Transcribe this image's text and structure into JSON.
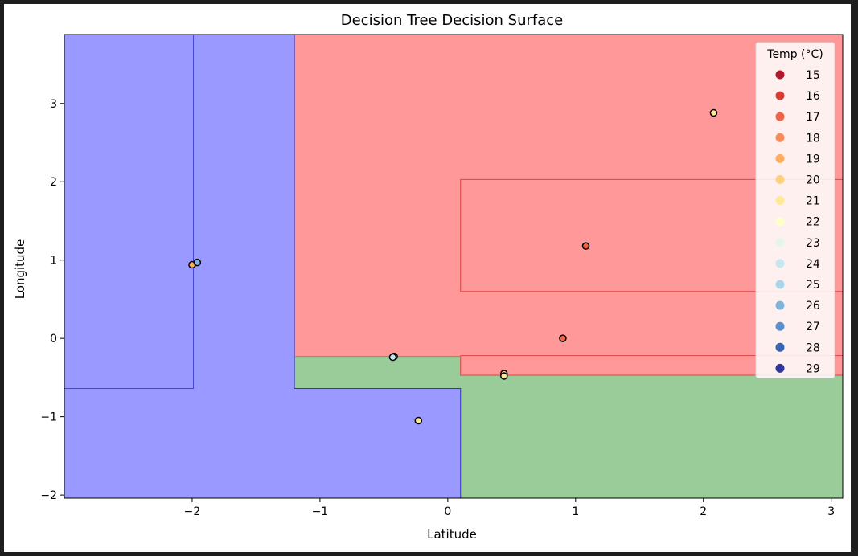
{
  "chart_data": {
    "type": "scatter",
    "title": "Decision Tree Decision Surface",
    "xlabel": "Latitude",
    "ylabel": "Longitude",
    "xlim": [
      -3.0,
      3.09
    ],
    "ylim": [
      -2.04,
      3.88
    ],
    "xticks": [
      -2,
      -1,
      0,
      1,
      2,
      3
    ],
    "yticks": [
      -2,
      -1,
      0,
      1,
      2,
      3
    ],
    "grid": false,
    "regions": [
      {
        "class": "blue",
        "color": "#9999ff",
        "x": [
          -3.0,
          -1.2
        ],
        "y": [
          -2.04,
          3.88
        ]
      },
      {
        "class": "blue",
        "color": "#9999ff",
        "x": [
          -1.2,
          0.1
        ],
        "y": [
          -2.04,
          -0.64
        ]
      },
      {
        "class": "red",
        "color": "#ff9999",
        "x": [
          -1.2,
          3.09
        ],
        "y": [
          -0.23,
          3.88
        ]
      },
      {
        "class": "red",
        "color": "#ff9999",
        "x": [
          0.1,
          3.09
        ],
        "y": [
          -0.47,
          -0.23
        ]
      },
      {
        "class": "green",
        "color": "#99cc99",
        "x": [
          -1.2,
          0.1
        ],
        "y": [
          -0.64,
          -0.23
        ]
      },
      {
        "class": "green",
        "color": "#99cc99",
        "x": [
          0.1,
          3.09
        ],
        "y": [
          -2.04,
          -0.47
        ]
      }
    ],
    "boundaries": [
      {
        "color": "#4444dd",
        "points": [
          [
            -1.99,
            3.88
          ],
          [
            -1.99,
            -0.64
          ],
          [
            -3.0,
            -0.64
          ]
        ]
      },
      {
        "color": "#3333bb",
        "points": [
          [
            -1.2,
            3.88
          ],
          [
            -1.2,
            -0.64
          ],
          [
            0.1,
            -0.64
          ],
          [
            0.1,
            -2.04
          ]
        ]
      },
      {
        "color": "#dd4444",
        "points": [
          [
            3.09,
            2.03
          ],
          [
            0.1,
            2.03
          ],
          [
            0.1,
            0.6
          ],
          [
            3.09,
            0.6
          ]
        ]
      },
      {
        "color": "#dd4444",
        "points": [
          [
            3.09,
            -0.22
          ],
          [
            0.1,
            -0.22
          ],
          [
            0.1,
            -0.47
          ],
          [
            3.09,
            -0.47
          ]
        ]
      },
      {
        "color": "#55aa55",
        "points": [
          [
            -1.2,
            -0.23
          ],
          [
            0.1,
            -0.23
          ]
        ]
      }
    ],
    "points": [
      {
        "x": 2.08,
        "y": 2.88,
        "temp": 21
      },
      {
        "x": 1.08,
        "y": 1.18,
        "temp": 17
      },
      {
        "x": 0.9,
        "y": 0.0,
        "temp": 17
      },
      {
        "x": 0.44,
        "y": -0.45,
        "temp": 20
      },
      {
        "x": 0.44,
        "y": -0.48,
        "temp": 21
      },
      {
        "x": -0.42,
        "y": -0.23,
        "temp": 21
      },
      {
        "x": -0.43,
        "y": -0.24,
        "temp": 24
      },
      {
        "x": -0.23,
        "y": -1.05,
        "temp": 21
      },
      {
        "x": -2.0,
        "y": 0.94,
        "temp": 19
      },
      {
        "x": -1.96,
        "y": 0.97,
        "temp": 26
      }
    ],
    "legend": {
      "title": "Temp (°C)",
      "position": "upper right",
      "entries": [
        {
          "label": "15",
          "color": "#b2182b"
        },
        {
          "label": "16",
          "color": "#d63e34"
        },
        {
          "label": "17",
          "color": "#ef6548"
        },
        {
          "label": "18",
          "color": "#f88b5a"
        },
        {
          "label": "19",
          "color": "#fdae61"
        },
        {
          "label": "20",
          "color": "#fed181"
        },
        {
          "label": "21",
          "color": "#fee99a"
        },
        {
          "label": "22",
          "color": "#ffffcc"
        },
        {
          "label": "23",
          "color": "#e6f5ec"
        },
        {
          "label": "24",
          "color": "#c7e6f0"
        },
        {
          "label": "25",
          "color": "#a9d6e8"
        },
        {
          "label": "26",
          "color": "#7fb5dc"
        },
        {
          "label": "27",
          "color": "#5b8fc8"
        },
        {
          "label": "28",
          "color": "#3c64b0"
        },
        {
          "label": "29",
          "color": "#313695"
        }
      ]
    }
  }
}
